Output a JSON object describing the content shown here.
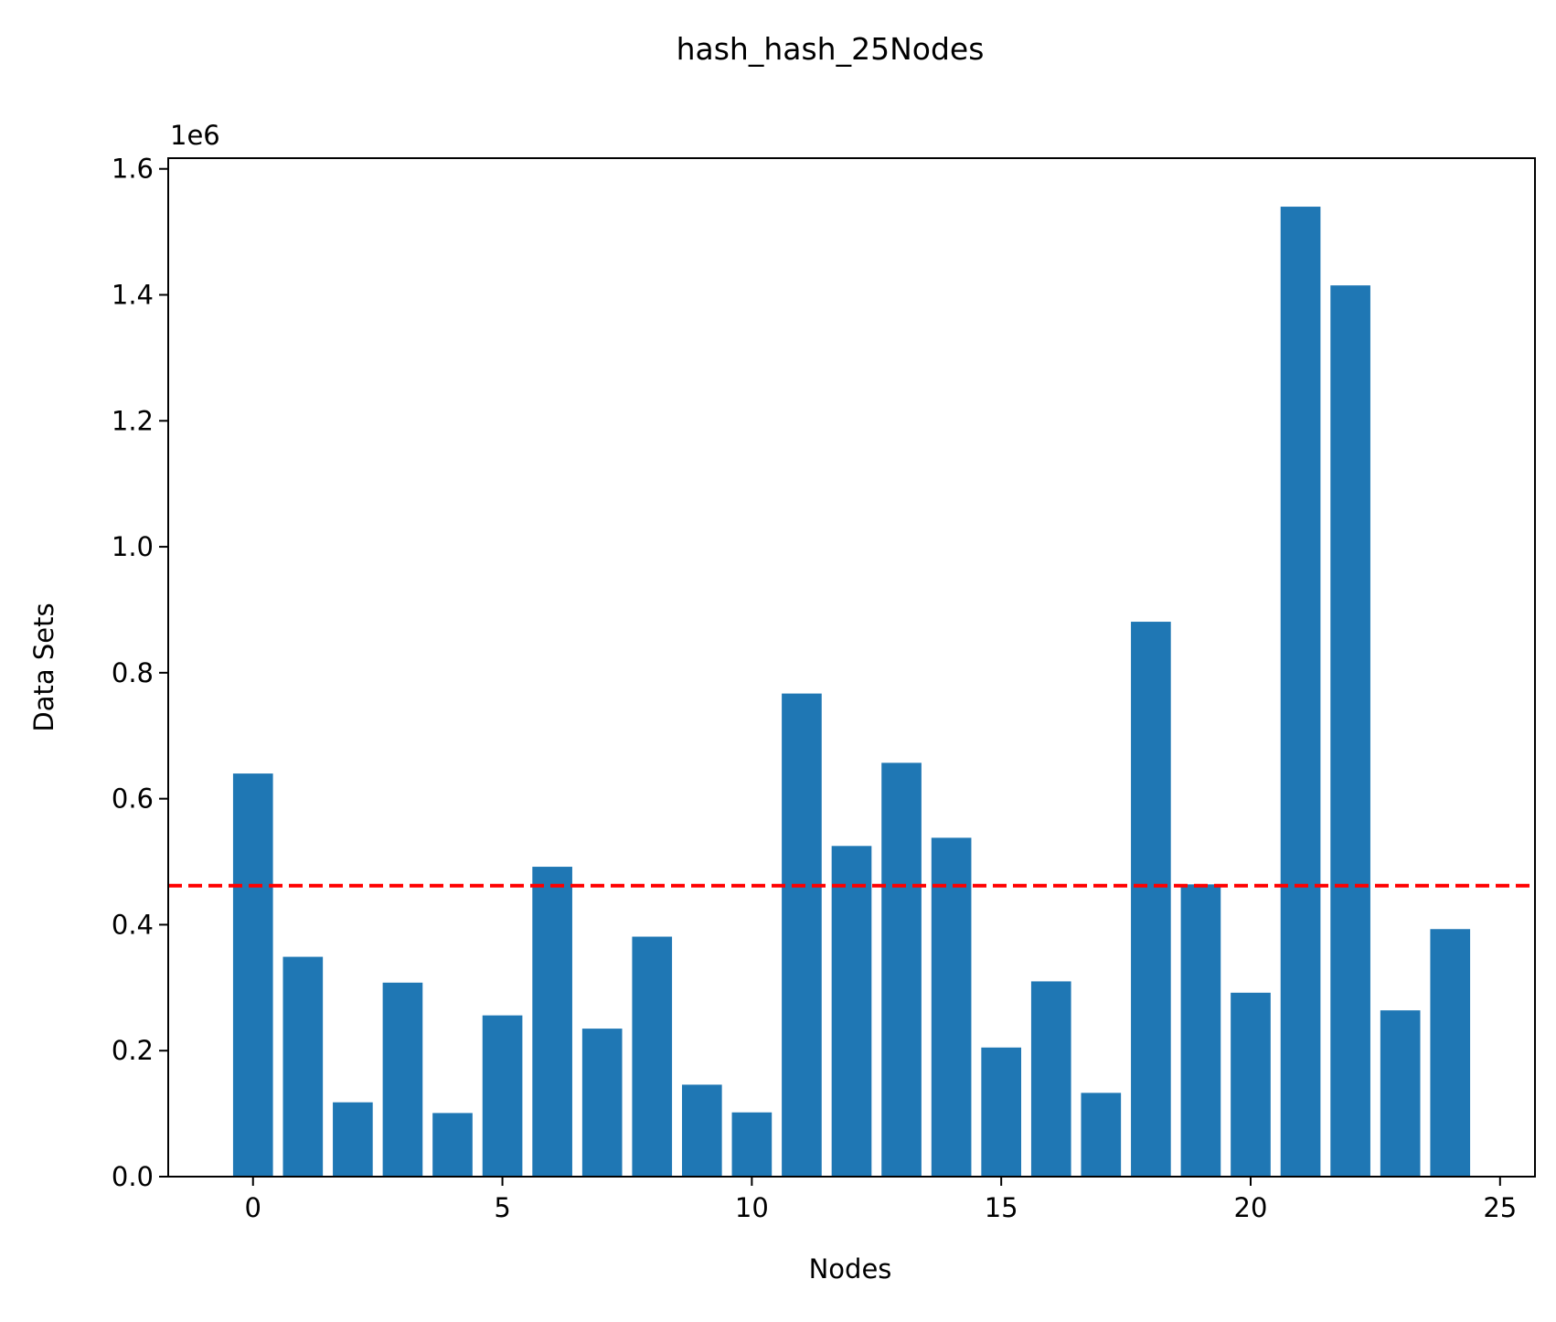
{
  "chart_data": {
    "type": "bar",
    "title": "hash_hash_25Nodes",
    "xlabel": "Nodes",
    "ylabel": "Data Sets",
    "y_scale_label": "1e6",
    "x": [
      0,
      1,
      2,
      3,
      4,
      5,
      6,
      7,
      8,
      9,
      10,
      11,
      12,
      13,
      14,
      15,
      16,
      17,
      18,
      19,
      20,
      21,
      22,
      23,
      24
    ],
    "values": [
      640000,
      349000,
      118000,
      308000,
      101000,
      256000,
      492000,
      235000,
      381000,
      146000,
      102000,
      767000,
      525000,
      657000,
      538000,
      205000,
      310000,
      133000,
      881000,
      464000,
      292000,
      1540000,
      1415000,
      264000,
      393000
    ],
    "mean_line": 462000,
    "xlim": [
      -1.7,
      25.7
    ],
    "ylim": [
      0,
      1617000
    ],
    "x_ticks": [
      0,
      5,
      10,
      15,
      20,
      25
    ],
    "x_tick_labels": [
      "0",
      "5",
      "10",
      "15",
      "20",
      "25"
    ],
    "y_ticks": [
      0,
      200000,
      400000,
      600000,
      800000,
      1000000,
      1200000,
      1400000,
      1600000
    ],
    "y_tick_labels": [
      "0.0",
      "0.2",
      "0.4",
      "0.6",
      "0.8",
      "1.0",
      "1.2",
      "1.4",
      "1.6"
    ],
    "bar_color": "#1f77b4",
    "mean_line_color": "#ff0000",
    "grid": false,
    "legend": "none"
  }
}
